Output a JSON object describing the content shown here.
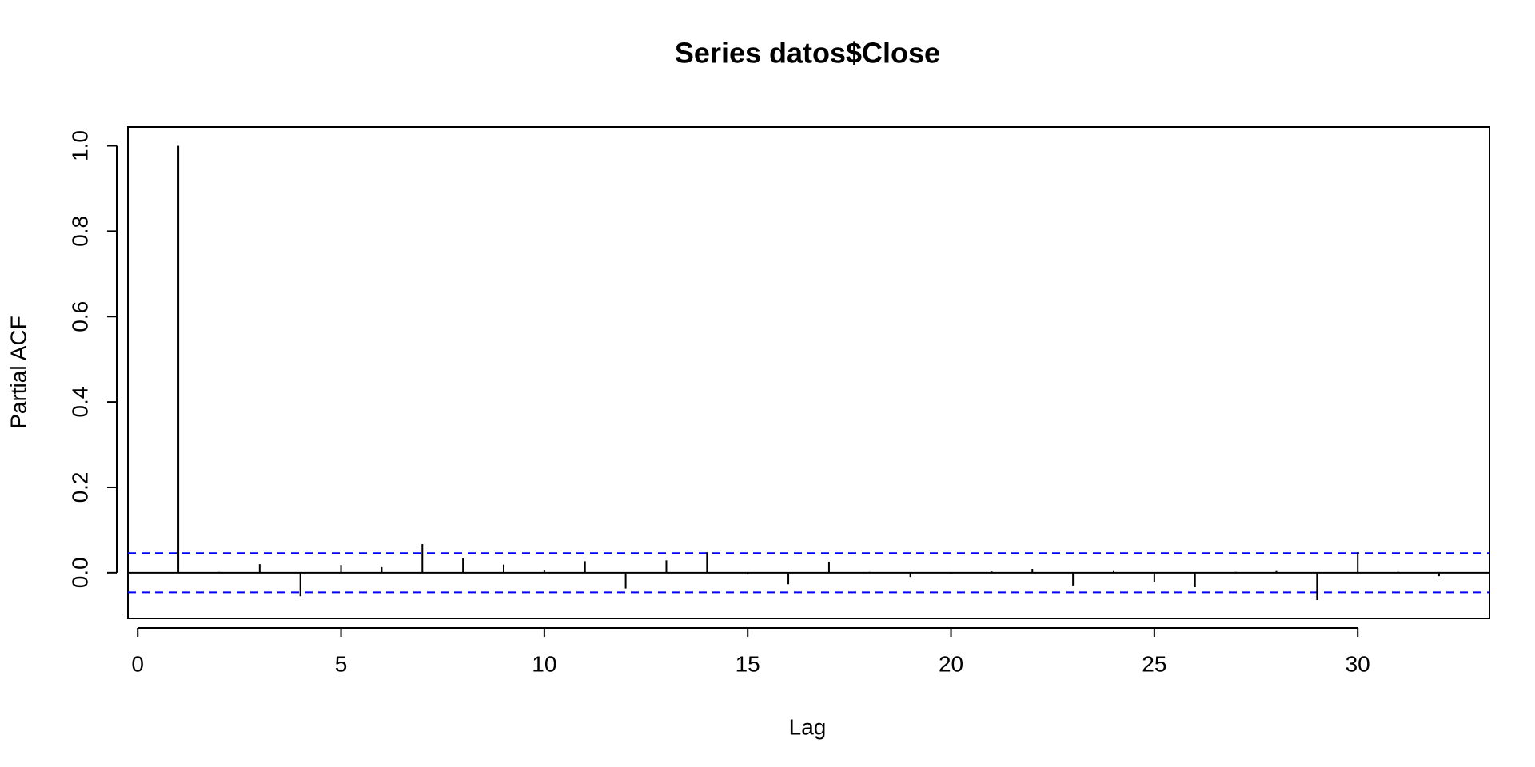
{
  "chart_data": {
    "type": "pacf",
    "title": "Series  datos$Close",
    "x_label": "Lag",
    "y_label": "Partial ACF",
    "x": [
      1,
      2,
      3,
      4,
      5,
      6,
      7,
      8,
      9,
      10,
      11,
      12,
      13,
      14,
      15,
      16,
      17,
      18,
      19,
      20,
      21,
      22,
      23,
      24,
      25,
      26,
      27,
      28,
      29,
      30,
      31,
      32
    ],
    "values": [
      1.0,
      0.002,
      0.02,
      -0.055,
      0.018,
      0.013,
      0.067,
      0.034,
      0.019,
      0.006,
      0.027,
      -0.037,
      0.029,
      0.048,
      -0.004,
      -0.027,
      0.026,
      0.002,
      -0.01,
      -0.002,
      0.003,
      0.009,
      -0.03,
      0.004,
      -0.022,
      -0.034,
      0.002,
      0.004,
      -0.064,
      0.048,
      0.002,
      -0.008
    ],
    "color": "#000000",
    "ci_lines": [
      0.046,
      -0.046
    ],
    "ci_color": "#0000ff",
    "xlim": [
      -0.24,
      33.24
    ],
    "ylim": [
      -0.107,
      1.044
    ],
    "xticks": [
      0,
      5,
      10,
      15,
      20,
      25,
      30
    ],
    "yticks": [
      {
        "value": 0,
        "label": "0.0"
      },
      0.2,
      0.4,
      0.6,
      0.8,
      {
        "value": 1,
        "label": "1.0"
      }
    ]
  }
}
